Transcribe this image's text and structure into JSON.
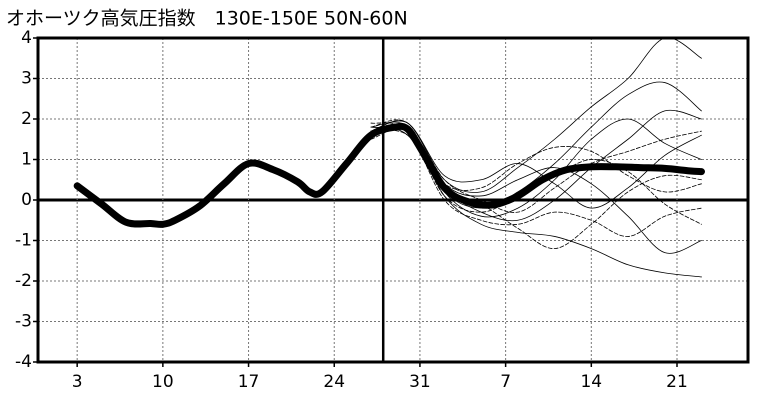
{
  "chart_data": {
    "type": "line",
    "title": "オホーツク高気圧指数　130E-150E  50N-60N",
    "xlim": [
      -3.2,
      54.8
    ],
    "xticks": [
      {
        "value": 0,
        "label": "3"
      },
      {
        "value": 7,
        "label": "10"
      },
      {
        "value": 14,
        "label": "17"
      },
      {
        "value": 21,
        "label": "24"
      },
      {
        "value": 28,
        "label": "31"
      },
      {
        "value": 35,
        "label": "7"
      },
      {
        "value": 42,
        "label": "14"
      },
      {
        "value": 49,
        "label": "21"
      }
    ],
    "ylim": [
      -4,
      4
    ],
    "yticks": [
      -4,
      -3,
      -2,
      -1,
      0,
      1,
      2,
      3,
      4
    ],
    "vline": 25,
    "grid": true,
    "series": [
      {
        "color": "#000000",
        "width": 0.8,
        "dash": false,
        "x": [
          24,
          27,
          30,
          33,
          36,
          39,
          42,
          45,
          48,
          51
        ],
        "values": [
          1.7,
          1.9,
          0.5,
          0.2,
          0.8,
          1.5,
          2.3,
          3.0,
          4.0,
          3.5
        ]
      },
      {
        "color": "#000000",
        "width": 0.8,
        "dash": false,
        "x": [
          24,
          27,
          30,
          33,
          36,
          39,
          42,
          45,
          48,
          51
        ],
        "values": [
          1.6,
          1.7,
          0.3,
          -0.3,
          -0.5,
          0.0,
          0.8,
          1.5,
          2.2,
          2.0
        ]
      },
      {
        "color": "#000000",
        "width": 0.8,
        "dash": false,
        "x": [
          24,
          27,
          30,
          33,
          36,
          39,
          42,
          45,
          48,
          51
        ],
        "values": [
          1.8,
          1.8,
          0.1,
          -0.6,
          -0.8,
          -0.9,
          -1.2,
          -1.6,
          -1.8,
          -1.9
        ]
      },
      {
        "color": "#000000",
        "width": 0.8,
        "dash": true,
        "x": [
          24,
          27,
          30,
          33,
          36,
          39,
          42,
          45,
          48,
          51
        ],
        "values": [
          1.7,
          1.6,
          0.4,
          0.3,
          0.9,
          1.3,
          1.2,
          0.6,
          0.2,
          0.4
        ]
      },
      {
        "color": "#000000",
        "width": 0.8,
        "dash": false,
        "x": [
          24,
          27,
          30,
          33,
          36,
          39,
          42,
          45,
          48,
          51
        ],
        "values": [
          1.6,
          1.8,
          0.2,
          -0.4,
          -0.2,
          0.5,
          1.5,
          2.0,
          1.4,
          1.0
        ]
      },
      {
        "color": "#000000",
        "width": 0.8,
        "dash": true,
        "x": [
          24,
          27,
          30,
          33,
          36,
          39,
          42,
          45,
          48,
          51
        ],
        "values": [
          1.9,
          1.7,
          0.0,
          -0.5,
          -0.6,
          -0.3,
          -0.5,
          -0.9,
          -0.4,
          -0.2
        ]
      },
      {
        "color": "#000000",
        "width": 0.8,
        "dash": false,
        "x": [
          24,
          27,
          30,
          33,
          36,
          39,
          42,
          45,
          48,
          51
        ],
        "values": [
          1.7,
          1.9,
          0.6,
          0.5,
          0.9,
          0.4,
          -0.2,
          0.3,
          1.1,
          1.6
        ]
      },
      {
        "color": "#000000",
        "width": 0.8,
        "dash": false,
        "x": [
          24,
          27,
          30,
          33,
          36,
          39,
          42,
          45,
          48,
          51
        ],
        "values": [
          1.8,
          1.6,
          0.2,
          -0.2,
          0.2,
          0.9,
          1.8,
          2.6,
          2.9,
          2.2
        ]
      },
      {
        "color": "#000000",
        "width": 0.8,
        "dash": true,
        "x": [
          24,
          27,
          30,
          33,
          36,
          39,
          42,
          45,
          48,
          51
        ],
        "values": [
          1.5,
          1.7,
          0.3,
          -0.1,
          -0.7,
          -1.2,
          -0.6,
          0.2,
          0.6,
          0.5
        ]
      },
      {
        "color": "#000000",
        "width": 0.8,
        "dash": false,
        "x": [
          24,
          27,
          30,
          33,
          36,
          39,
          42,
          45,
          48,
          51
        ],
        "values": [
          1.7,
          1.8,
          0.4,
          0.1,
          0.5,
          0.8,
          0.4,
          -0.4,
          -1.3,
          -1.0
        ]
      },
      {
        "color": "#000000",
        "width": 0.8,
        "dash": true,
        "x": [
          24,
          27,
          30,
          33,
          36,
          39,
          42,
          45,
          48,
          51
        ],
        "values": [
          1.6,
          1.7,
          0.1,
          -0.3,
          0.1,
          0.6,
          1.0,
          0.7,
          -0.1,
          -0.6
        ]
      },
      {
        "color": "#000000",
        "width": 0.8,
        "dash": true,
        "x": [
          24,
          27,
          30,
          33,
          36,
          39,
          42,
          45,
          48,
          51
        ],
        "values": [
          1.8,
          1.9,
          0.5,
          0.0,
          -0.3,
          0.3,
          0.9,
          1.2,
          1.5,
          1.7
        ]
      },
      {
        "color": "#000000",
        "width": 7,
        "dash": false,
        "x": [
          0,
          2,
          4,
          6,
          7,
          8,
          10,
          12,
          14,
          16,
          18,
          19,
          20,
          22,
          24,
          26,
          27,
          28,
          30,
          32,
          34,
          36,
          38,
          40,
          42,
          44,
          46,
          48,
          50,
          51
        ],
        "values": [
          0.35,
          -0.1,
          -0.55,
          -0.58,
          -0.6,
          -0.5,
          -0.15,
          0.4,
          0.9,
          0.75,
          0.45,
          0.2,
          0.2,
          0.9,
          1.6,
          1.8,
          1.75,
          1.3,
          0.3,
          -0.05,
          -0.12,
          0.1,
          0.5,
          0.75,
          0.82,
          0.82,
          0.8,
          0.78,
          0.72,
          0.7
        ]
      }
    ]
  }
}
